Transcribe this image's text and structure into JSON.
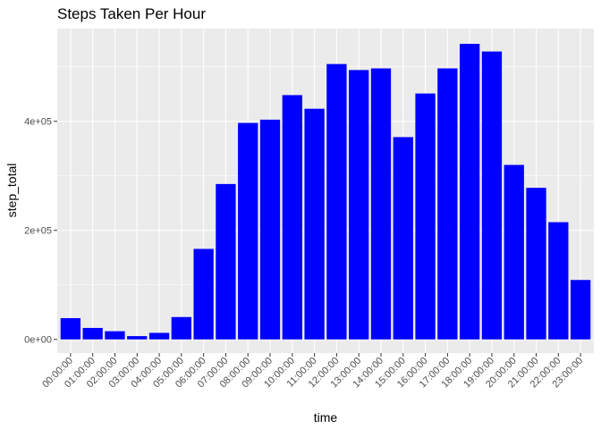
{
  "chart_data": {
    "type": "bar",
    "title": "Steps Taken Per Hour",
    "xlabel": "time",
    "ylabel": "step_total",
    "categories": [
      "00:00:00",
      "01:00:00",
      "02:00:00",
      "03:00:00",
      "04:00:00",
      "05:00:00",
      "06:00:00",
      "07:00:00",
      "08:00:00",
      "09:00:00",
      "10:00:00",
      "11:00:00",
      "12:00:00",
      "13:00:00",
      "14:00:00",
      "15:00:00",
      "16:00:00",
      "17:00:00",
      "18:00:00",
      "19:00:00",
      "20:00:00",
      "21:00:00",
      "22:00:00",
      "23:00:00"
    ],
    "values": [
      39000,
      21000,
      15000,
      6000,
      12000,
      41000,
      166000,
      285000,
      397000,
      403000,
      448000,
      423000,
      505000,
      494000,
      497000,
      371000,
      451000,
      497000,
      542000,
      528000,
      320000,
      278000,
      215000,
      109000
    ],
    "ylim": [
      -25000,
      570000
    ],
    "yticks": [
      0,
      200000,
      400000
    ],
    "ytick_labels": [
      "0e+00",
      "2e+05",
      "4e+05"
    ],
    "bar_color": "#0000FF",
    "panel_background": "#EBEBEB",
    "grid": true
  }
}
